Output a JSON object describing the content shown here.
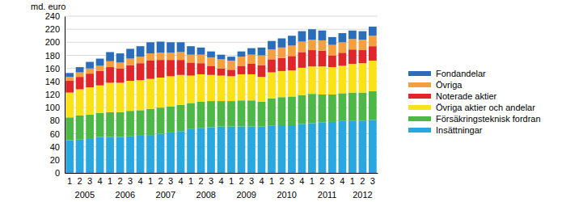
{
  "chart_data": {
    "type": "bar",
    "stacked": true,
    "grid": true,
    "legend": "right",
    "y_label": "md. euro",
    "categories": [
      "1",
      "2",
      "3",
      "4",
      "1",
      "2",
      "3",
      "4",
      "1",
      "2",
      "3",
      "4",
      "1",
      "2",
      "3",
      "4",
      "1",
      "2",
      "3",
      "4",
      "1",
      "2",
      "3",
      "4",
      "1",
      "2",
      "3",
      "4",
      "1",
      "2",
      "3"
    ],
    "x_groups": [
      {
        "label": "2005",
        "count": 4
      },
      {
        "label": "2006",
        "count": 4
      },
      {
        "label": "2007",
        "count": 4
      },
      {
        "label": "2008",
        "count": 4
      },
      {
        "label": "2009",
        "count": 4
      },
      {
        "label": "2010",
        "count": 4
      },
      {
        "label": "2011",
        "count": 4
      },
      {
        "label": "2012",
        "count": 3
      }
    ],
    "ylim": [
      0,
      240
    ],
    "yticks": [
      0,
      20,
      40,
      60,
      80,
      100,
      120,
      140,
      160,
      180,
      200,
      220,
      240
    ],
    "series": [
      {
        "name": "Insättningar",
        "color": "#29a8e0",
        "values": [
          50,
          51,
          52,
          55,
          55,
          55,
          56,
          57,
          58,
          60,
          62,
          64,
          67,
          69,
          70,
          71,
          71,
          71,
          71,
          71,
          72,
          73,
          73,
          75,
          76,
          77,
          78,
          80,
          80,
          80,
          81
        ]
      },
      {
        "name": "Försäkringsteknisk fordran",
        "color": "#4db848",
        "values": [
          35,
          37,
          37,
          37,
          38,
          38,
          39,
          39,
          40,
          40,
          40,
          40,
          40,
          40,
          40,
          39,
          39,
          40,
          40,
          38,
          42,
          43,
          44,
          44,
          45,
          43,
          42,
          42,
          43,
          43,
          44
        ]
      },
      {
        "name": "Övriga aktier och andelar",
        "color": "#fbe216",
        "values": [
          38,
          40,
          42,
          42,
          45,
          45,
          46,
          46,
          46,
          46,
          46,
          46,
          42,
          42,
          40,
          39,
          38,
          40,
          40,
          38,
          40,
          40,
          40,
          42,
          42,
          43,
          42,
          42,
          44,
          45,
          47
        ]
      },
      {
        "name": "Noterade aktier",
        "color": "#e0262b",
        "values": [
          18,
          19,
          21,
          22,
          24,
          22,
          24,
          26,
          28,
          27,
          25,
          23,
          20,
          17,
          14,
          11,
          10,
          13,
          16,
          18,
          20,
          20,
          22,
          24,
          25,
          24,
          18,
          20,
          22,
          20,
          22
        ]
      },
      {
        "name": "Övriga",
        "color": "#f5a040",
        "values": [
          6,
          7,
          8,
          8,
          9,
          9,
          10,
          10,
          11,
          11,
          11,
          12,
          12,
          13,
          13,
          14,
          14,
          14,
          14,
          15,
          15,
          16,
          16,
          16,
          16,
          16,
          16,
          16,
          16,
          16,
          16
        ]
      },
      {
        "name": "Fondandelar",
        "color": "#2a6ebb",
        "values": [
          6,
          8,
          10,
          11,
          14,
          14,
          15,
          16,
          17,
          17,
          16,
          15,
          13,
          11,
          9,
          7,
          6,
          8,
          10,
          12,
          13,
          14,
          15,
          16,
          16,
          15,
          12,
          14,
          13,
          13,
          14
        ]
      }
    ]
  }
}
